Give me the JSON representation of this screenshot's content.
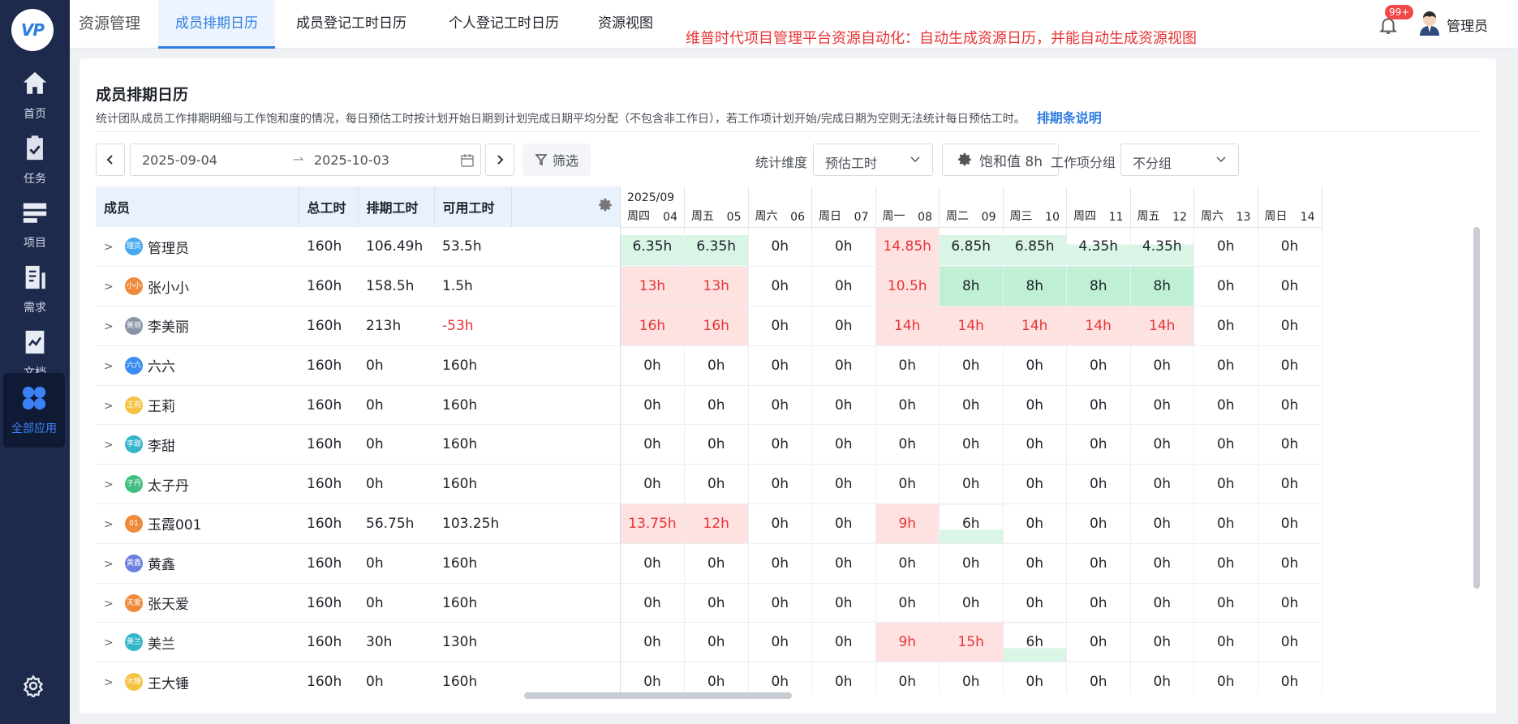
{
  "app": {
    "logo_text": "VP"
  },
  "sidebar": {
    "items": [
      {
        "label": "首页",
        "icon": "home-icon"
      },
      {
        "label": "任务",
        "icon": "task-icon"
      },
      {
        "label": "项目",
        "icon": "project-icon"
      },
      {
        "label": "需求",
        "icon": "requirement-icon"
      },
      {
        "label": "文档",
        "icon": "document-icon"
      },
      {
        "label": "全部应用",
        "icon": "apps-icon",
        "active": true
      }
    ]
  },
  "header": {
    "module_title": "资源管理",
    "tabs": [
      {
        "label": "成员排期日历",
        "active": true
      },
      {
        "label": "成员登记工时日历"
      },
      {
        "label": "个人登记工时日历"
      },
      {
        "label": "资源视图"
      }
    ],
    "banner": "维普时代项目管理平台资源自动化：自动生成资源日历，并能自动生成资源视图",
    "notification_badge": "99+",
    "user_name": "管理员"
  },
  "page": {
    "title": "成员排期日历",
    "description": "统计团队成员工作排期明细与工作饱和度的情况，每日预估工时按计划开始日期到计划完成日期平均分配（不包含非工作日），若工作项计划开始/完成日期为空则无法统计每日预估工时。",
    "description_link": "排期条说明"
  },
  "toolbar": {
    "date_start": "2025-09-04",
    "date_end": "2025-10-03",
    "filter_label": "筛选",
    "dimension_label": "统计维度",
    "dimension_value": "预估工时",
    "saturation_label": "饱和值 8h",
    "group_label": "工作项分组",
    "group_value": "不分组"
  },
  "table": {
    "columns": [
      "成员",
      "总工时",
      "排期工时",
      "可用工时"
    ],
    "month": "2025/09",
    "days": [
      {
        "week": "周四",
        "day": "04"
      },
      {
        "week": "周五",
        "day": "05"
      },
      {
        "week": "周六",
        "day": "06"
      },
      {
        "week": "周日",
        "day": "07"
      },
      {
        "week": "周一",
        "day": "08"
      },
      {
        "week": "周二",
        "day": "09"
      },
      {
        "week": "周三",
        "day": "10"
      },
      {
        "week": "周四",
        "day": "11"
      },
      {
        "week": "周五",
        "day": "12"
      },
      {
        "week": "周六",
        "day": "13"
      },
      {
        "week": "周日",
        "day": "14"
      }
    ],
    "rows": [
      {
        "avatar": "理员",
        "avatar_color": "#4aa8f0",
        "name": "管理员",
        "total": "160h",
        "scheduled": "106.49h",
        "available": "53.5h",
        "available_negative": false,
        "cells": [
          "6.35h",
          "6.35h",
          "0h",
          "0h",
          "14.85h",
          "6.85h",
          "6.85h",
          "4.35h",
          "4.35h",
          "0h",
          "0h"
        ],
        "states": [
          "part",
          "part",
          "",
          "",
          "over",
          "part",
          "part",
          "part2",
          "part2",
          "",
          ""
        ]
      },
      {
        "avatar": "小小",
        "avatar_color": "#f08a3a",
        "name": "张小小",
        "total": "160h",
        "scheduled": "158.5h",
        "available": "1.5h",
        "available_negative": false,
        "cells": [
          "13h",
          "13h",
          "0h",
          "0h",
          "10.5h",
          "8h",
          "8h",
          "8h",
          "8h",
          "0h",
          "0h"
        ],
        "states": [
          "over",
          "over",
          "",
          "",
          "over",
          "full",
          "full",
          "full",
          "full",
          "",
          ""
        ]
      },
      {
        "avatar": "美丽",
        "avatar_color": "#8a93a8",
        "name": "李美丽",
        "total": "160h",
        "scheduled": "213h",
        "available": "-53h",
        "available_negative": true,
        "cells": [
          "16h",
          "16h",
          "0h",
          "0h",
          "14h",
          "14h",
          "14h",
          "14h",
          "14h",
          "0h",
          "0h"
        ],
        "states": [
          "over",
          "over",
          "",
          "",
          "over",
          "over",
          "over",
          "over",
          "over",
          "",
          ""
        ]
      },
      {
        "avatar": "六六",
        "avatar_color": "#3b8cf0",
        "name": "六六",
        "total": "160h",
        "scheduled": "0h",
        "available": "160h",
        "available_negative": false,
        "cells": [
          "0h",
          "0h",
          "0h",
          "0h",
          "0h",
          "0h",
          "0h",
          "0h",
          "0h",
          "0h",
          "0h"
        ],
        "states": []
      },
      {
        "avatar": "王莉",
        "avatar_color": "#f5c243",
        "name": "王莉",
        "total": "160h",
        "scheduled": "0h",
        "available": "160h",
        "available_negative": false,
        "cells": [
          "0h",
          "0h",
          "0h",
          "0h",
          "0h",
          "0h",
          "0h",
          "0h",
          "0h",
          "0h",
          "0h"
        ],
        "states": []
      },
      {
        "avatar": "李甜",
        "avatar_color": "#34b6c9",
        "name": "李甜",
        "total": "160h",
        "scheduled": "0h",
        "available": "160h",
        "available_negative": false,
        "cells": [
          "0h",
          "0h",
          "0h",
          "0h",
          "0h",
          "0h",
          "0h",
          "0h",
          "0h",
          "0h",
          "0h"
        ],
        "states": []
      },
      {
        "avatar": "子丹",
        "avatar_color": "#3fbf7f",
        "name": "太子丹",
        "total": "160h",
        "scheduled": "0h",
        "available": "160h",
        "available_negative": false,
        "cells": [
          "0h",
          "0h",
          "0h",
          "0h",
          "0h",
          "0h",
          "0h",
          "0h",
          "0h",
          "0h",
          "0h"
        ],
        "states": []
      },
      {
        "avatar": "01",
        "avatar_color": "#f08a3a",
        "name": "玉霞001",
        "total": "160h",
        "scheduled": "56.75h",
        "available": "103.25h",
        "available_negative": false,
        "cells": [
          "13.75h",
          "12h",
          "0h",
          "0h",
          "9h",
          "6h",
          "0h",
          "0h",
          "0h",
          "0h",
          "0h"
        ],
        "states": [
          "over",
          "over",
          "",
          "",
          "over",
          "part3",
          "",
          "",
          "",
          "",
          ""
        ]
      },
      {
        "avatar": "黄鑫",
        "avatar_color": "#6c7fe0",
        "name": "黄鑫",
        "total": "160h",
        "scheduled": "0h",
        "available": "160h",
        "available_negative": false,
        "cells": [
          "0h",
          "0h",
          "0h",
          "0h",
          "0h",
          "0h",
          "0h",
          "0h",
          "0h",
          "0h",
          "0h"
        ],
        "states": []
      },
      {
        "avatar": "天爱",
        "avatar_color": "#f08a3a",
        "name": "张天爱",
        "total": "160h",
        "scheduled": "0h",
        "available": "160h",
        "available_negative": false,
        "cells": [
          "0h",
          "0h",
          "0h",
          "0h",
          "0h",
          "0h",
          "0h",
          "0h",
          "0h",
          "0h",
          "0h"
        ],
        "states": []
      },
      {
        "avatar": "美兰",
        "avatar_color": "#34b6c9",
        "name": "美兰",
        "total": "160h",
        "scheduled": "30h",
        "available": "130h",
        "available_negative": false,
        "cells": [
          "0h",
          "0h",
          "0h",
          "0h",
          "9h",
          "15h",
          "6h",
          "0h",
          "0h",
          "0h",
          "0h"
        ],
        "states": [
          "",
          "",
          "",
          "",
          "over",
          "over",
          "part3",
          "",
          "",
          "",
          ""
        ]
      },
      {
        "avatar": "大锤",
        "avatar_color": "#f5c243",
        "name": "王大锤",
        "total": "160h",
        "scheduled": "0h",
        "available": "160h",
        "available_negative": false,
        "cells": [
          "0h",
          "0h",
          "0h",
          "0h",
          "0h",
          "0h",
          "0h",
          "0h",
          "0h",
          "0h",
          "0h"
        ],
        "states": []
      }
    ]
  }
}
